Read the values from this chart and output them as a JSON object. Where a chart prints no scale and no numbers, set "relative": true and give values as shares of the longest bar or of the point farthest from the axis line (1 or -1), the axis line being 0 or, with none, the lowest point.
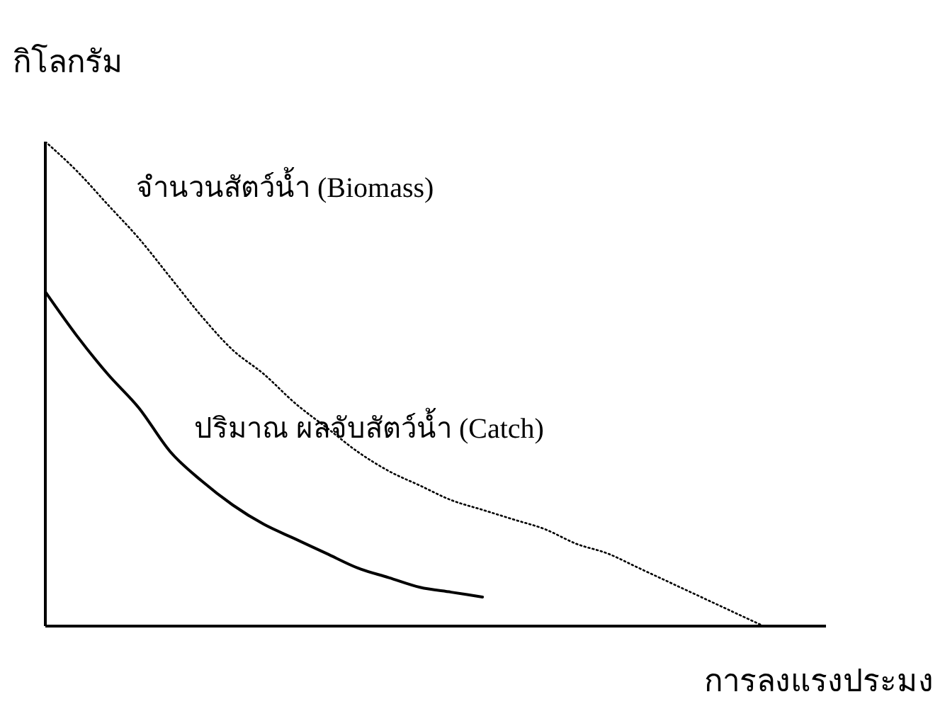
{
  "chart_data": {
    "type": "line",
    "relative": true,
    "xlabel": "การลงแรงประมง",
    "ylabel": "กิโลกรัม",
    "marker": "none",
    "categories": [
      null,
      null,
      null,
      null,
      null,
      null,
      null,
      null,
      null,
      null,
      null,
      null,
      null,
      null,
      null,
      null,
      null,
      null,
      null,
      null,
      null,
      null,
      null,
      null,
      null,
      null
    ],
    "series": [
      {
        "name": "จำนวนสัตว์น้ำ (Biomass)",
        "color": "#000000",
        "line_style": "dotted",
        "values": [
          1.0,
          0.94,
          0.87,
          0.8,
          0.72,
          0.64,
          0.57,
          0.52,
          0.46,
          0.41,
          0.36,
          0.32,
          0.29,
          0.26,
          0.24,
          0.22,
          0.2,
          0.17,
          0.15,
          0.12,
          0.09,
          0.06,
          0.03,
          0,
          null,
          null
        ]
      },
      {
        "name": "ปริมาณ ผลจับสัตว์น้ำ (Catch)",
        "color": "#000000",
        "line_style": "solid",
        "values": [
          0.69,
          0.6,
          0.52,
          0.45,
          0.36,
          0.3,
          0.25,
          0.21,
          0.18,
          0.15,
          0.12,
          0.1,
          0.08,
          0.07,
          0.06,
          null,
          null,
          null,
          null,
          null,
          null,
          null,
          null,
          null,
          null,
          null
        ]
      }
    ]
  }
}
